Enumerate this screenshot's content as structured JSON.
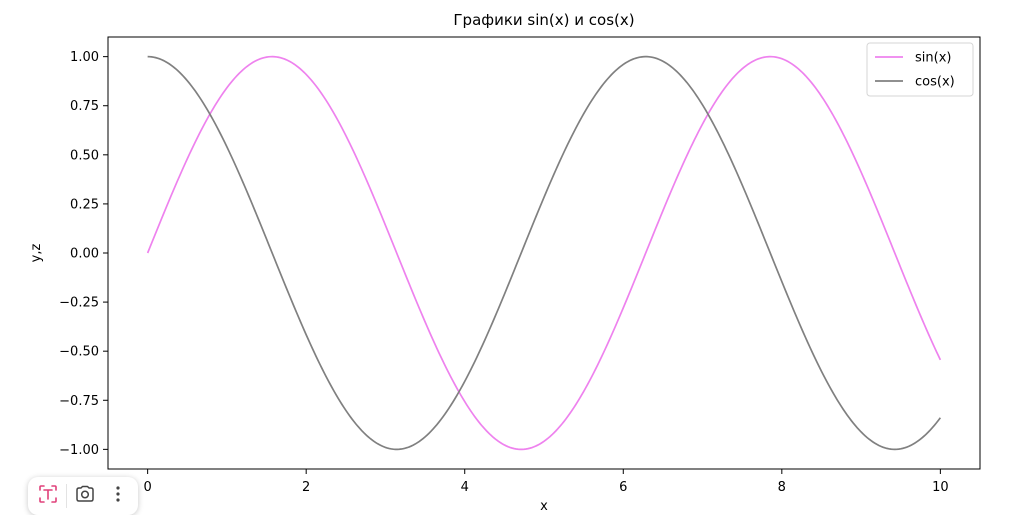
{
  "colors": {
    "sin": "#ee82ee",
    "cos": "#808080",
    "toolbar_accent": "#e0407a"
  },
  "chart_data": {
    "type": "line",
    "title": "Графики sin(x) и cos(x)",
    "xlabel": "x",
    "ylabel": "y,z",
    "xlim": [
      -0.5,
      10.5
    ],
    "ylim": [
      -1.1,
      1.1
    ],
    "x_ticks": [
      0,
      2,
      4,
      6,
      8,
      10
    ],
    "x_tick_labels": [
      "0",
      "2",
      "4",
      "6",
      "8",
      "10"
    ],
    "y_ticks": [
      1.0,
      0.75,
      0.5,
      0.25,
      0.0,
      -0.25,
      -0.5,
      -0.75,
      -1.0
    ],
    "y_tick_labels": [
      "1.00",
      "0.75",
      "0.50",
      "0.25",
      "0.00",
      "−0.25",
      "−0.50",
      "−0.75",
      "−1.00"
    ],
    "grid": false,
    "legend_position": "top-right",
    "series": [
      {
        "name": "sin(x)",
        "color": "#ee82ee",
        "x": [
          0,
          0.5,
          1,
          1.5,
          2,
          2.5,
          3,
          3.5,
          4,
          4.5,
          5,
          5.5,
          6,
          6.5,
          7,
          7.5,
          8,
          8.5,
          9,
          9.5,
          10
        ],
        "y": [
          0,
          0.479,
          0.841,
          0.997,
          0.909,
          0.598,
          0.141,
          -0.351,
          -0.757,
          -0.978,
          -0.959,
          -0.706,
          -0.279,
          0.215,
          0.657,
          0.938,
          0.989,
          0.798,
          0.412,
          -0.075,
          -0.544
        ]
      },
      {
        "name": "cos(x)",
        "color": "#808080",
        "x": [
          0,
          0.5,
          1,
          1.5,
          2,
          2.5,
          3,
          3.5,
          4,
          4.5,
          5,
          5.5,
          6,
          6.5,
          7,
          7.5,
          8,
          8.5,
          9,
          9.5,
          10
        ],
        "y": [
          1,
          0.878,
          0.54,
          0.071,
          -0.416,
          -0.801,
          -0.99,
          -0.936,
          -0.654,
          -0.211,
          0.284,
          0.709,
          0.96,
          0.977,
          0.754,
          0.347,
          -0.146,
          -0.602,
          -0.911,
          -0.997,
          -0.839
        ]
      }
    ]
  },
  "toolbar": {
    "text_icon": "text-select-icon",
    "lens_icon": "lens-icon",
    "more_icon": "more-vertical-icon"
  }
}
